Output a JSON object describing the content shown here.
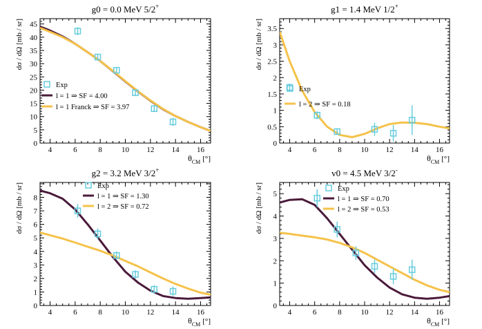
{
  "chart_data": [
    {
      "type": "scatter",
      "title": "g0 = 0.0 MeV 5/2",
      "title_sup": "+",
      "xlabel": "θ",
      "xlabel_sub": "CM",
      "xlabel_unit": "[°]",
      "ylabel": "dσ / dΩ [mb / sr]",
      "xlim": [
        3.2,
        16.8
      ],
      "ylim": [
        0,
        47
      ],
      "xticks": [
        4,
        6,
        8,
        10,
        12,
        14,
        16
      ],
      "yticks": [
        0,
        5,
        10,
        15,
        20,
        25,
        30,
        35,
        40,
        45
      ],
      "grid": false,
      "legend_entries": [
        "Exp",
        "l = 1 ⇒ SF = 4.00",
        "l = 1 Franck ⇒ SF = 3.97"
      ],
      "colors": {
        "exp": "#66ccdd",
        "l1": "#4a1a3a",
        "l2": "#f5c24a"
      },
      "exp": [
        {
          "x": 6.2,
          "y": 42.3,
          "err": 1.5
        },
        {
          "x": 7.8,
          "y": 32.5,
          "err": 1.2
        },
        {
          "x": 9.3,
          "y": 27.5,
          "err": 1.2
        },
        {
          "x": 10.8,
          "y": 19.0,
          "err": 1.2
        },
        {
          "x": 12.3,
          "y": 13.0,
          "err": 1.2
        },
        {
          "x": 13.8,
          "y": 8.0,
          "err": 1.5
        }
      ],
      "series": [
        {
          "name": "l = 1 ⇒ SF = 4.00",
          "color": "#4a1a3a",
          "x": [
            3.2,
            4,
            5,
            6,
            7,
            8,
            9,
            10,
            11,
            12,
            13,
            14,
            15,
            16,
            16.8
          ],
          "y": [
            44.0,
            42.5,
            40.3,
            37.5,
            34.3,
            31.0,
            27.2,
            23.3,
            19.5,
            16.0,
            12.8,
            10.2,
            8.0,
            6.0,
            4.6
          ]
        },
        {
          "name": "l = 1 Franck ⇒ SF = 3.97",
          "color": "#f5c24a",
          "x": [
            3.2,
            4,
            5,
            6,
            7,
            8,
            9,
            10,
            11,
            12,
            13,
            14,
            15,
            16,
            16.8
          ],
          "y": [
            43.5,
            42.0,
            40.0,
            37.5,
            34.3,
            31.0,
            27.3,
            23.4,
            19.6,
            16.1,
            12.9,
            10.2,
            8.0,
            6.0,
            4.6
          ]
        }
      ]
    },
    {
      "type": "scatter",
      "title": "g1 = 1.4 MeV 1/2",
      "title_sup": "+",
      "xlabel": "θ",
      "xlabel_sub": "CM",
      "xlabel_unit": "[°]",
      "ylabel": "dσ / dΩ [mb / sr]",
      "xlim": [
        3.2,
        16.8
      ],
      "ylim": [
        0,
        3.8
      ],
      "xticks": [
        4,
        6,
        8,
        10,
        12,
        14,
        16
      ],
      "yticks": [
        0,
        0.5,
        1,
        1.5,
        2,
        2.5,
        3,
        3.5
      ],
      "grid": false,
      "legend_entries": [
        "Exp",
        "l = 2 ⇒ SF = 0.18"
      ],
      "colors": {
        "exp": "#66ccdd",
        "l2": "#f5c24a"
      },
      "exp": [
        {
          "x": 4.0,
          "y": 1.7,
          "err": 0.12
        },
        {
          "x": 6.2,
          "y": 0.85,
          "err": 0.12
        },
        {
          "x": 7.8,
          "y": 0.35,
          "err": 0.08
        },
        {
          "x": 10.8,
          "y": 0.42,
          "err": 0.2
        },
        {
          "x": 12.3,
          "y": 0.3,
          "err": 0.25
        },
        {
          "x": 13.8,
          "y": 0.7,
          "err": 0.45
        }
      ],
      "series": [
        {
          "name": "l = 2 ⇒ SF = 0.18",
          "color": "#f5c24a",
          "x": [
            3.2,
            4,
            5,
            6,
            7,
            8,
            9,
            10,
            11,
            12,
            13,
            14,
            15,
            16,
            16.8
          ],
          "y": [
            3.4,
            2.5,
            1.6,
            0.95,
            0.5,
            0.25,
            0.18,
            0.28,
            0.45,
            0.58,
            0.63,
            0.62,
            0.58,
            0.5,
            0.45
          ]
        }
      ]
    },
    {
      "type": "scatter",
      "title": "g2 = 3.2 MeV 3/2",
      "title_sup": "+",
      "xlabel": "θ",
      "xlabel_sub": "CM",
      "xlabel_unit": "[°]",
      "ylabel": "dσ / dΩ [mb / sr]",
      "xlim": [
        3.2,
        16.8
      ],
      "ylim": [
        0,
        9.1
      ],
      "xticks": [
        4,
        6,
        8,
        10,
        12,
        14,
        16
      ],
      "yticks": [
        0,
        1,
        2,
        3,
        4,
        5,
        6,
        7,
        8
      ],
      "grid": false,
      "legend_entries": [
        "Exp",
        "l = 1 ⇒ SF = 1.30",
        "l = 2 ⇒ SF = 0.72"
      ],
      "colors": {
        "exp": "#66ccdd",
        "l1": "#4a1a3a",
        "l2": "#f5c24a"
      },
      "exp": [
        {
          "x": 6.2,
          "y": 7.0,
          "err": 0.5
        },
        {
          "x": 7.8,
          "y": 5.3,
          "err": 0.4
        },
        {
          "x": 9.3,
          "y": 3.7,
          "err": 0.3
        },
        {
          "x": 10.8,
          "y": 2.3,
          "err": 0.3
        },
        {
          "x": 12.3,
          "y": 1.2,
          "err": 0.3
        },
        {
          "x": 13.8,
          "y": 1.05,
          "err": 0.35
        }
      ],
      "series": [
        {
          "name": "l = 1 ⇒ SF = 1.30",
          "color": "#4a1a3a",
          "x": [
            3.2,
            4,
            5,
            6,
            7,
            8,
            9,
            10,
            11,
            12,
            13,
            14,
            15,
            16,
            16.8
          ],
          "y": [
            8.5,
            8.3,
            7.9,
            7.1,
            6.0,
            4.8,
            3.6,
            2.5,
            1.7,
            1.1,
            0.7,
            0.55,
            0.5,
            0.55,
            0.6
          ]
        },
        {
          "name": "l = 2 ⇒ SF = 0.72",
          "color": "#f5c24a",
          "x": [
            3.2,
            4,
            5,
            6,
            7,
            8,
            9,
            10,
            11,
            12,
            13,
            14,
            15,
            16,
            16.8
          ],
          "y": [
            5.4,
            5.2,
            4.95,
            4.65,
            4.35,
            4.05,
            3.7,
            3.3,
            2.9,
            2.45,
            2.0,
            1.6,
            1.25,
            0.95,
            0.8
          ]
        }
      ]
    },
    {
      "type": "scatter",
      "title": "v0 = 4.5 MeV 3/2",
      "title_sup": "-",
      "xlabel": "θ",
      "xlabel_sub": "CM",
      "xlabel_unit": "[°]",
      "ylabel": "dσ / dΩ [mb / sr]",
      "xlim": [
        3.2,
        16.8
      ],
      "ylim": [
        0,
        5.5
      ],
      "xticks": [
        4,
        6,
        8,
        10,
        12,
        14,
        16
      ],
      "yticks": [
        0,
        1,
        2,
        3,
        4,
        5
      ],
      "grid": false,
      "legend_entries": [
        "Exp",
        "l = 1 ⇒ SF = 0.70",
        "l = 2 ⇒ SF = 0.53"
      ],
      "colors": {
        "exp": "#66ccdd",
        "l1": "#4a1a3a",
        "l2": "#f5c24a"
      },
      "exp": [
        {
          "x": 6.2,
          "y": 4.8,
          "err": 0.4
        },
        {
          "x": 7.8,
          "y": 3.4,
          "err": 0.35
        },
        {
          "x": 9.3,
          "y": 2.35,
          "err": 0.3
        },
        {
          "x": 10.8,
          "y": 1.75,
          "err": 0.3
        },
        {
          "x": 12.3,
          "y": 1.3,
          "err": 0.35
        },
        {
          "x": 13.8,
          "y": 1.6,
          "err": 0.45
        }
      ],
      "series": [
        {
          "name": "l = 1 ⇒ SF = 0.70",
          "color": "#4a1a3a",
          "x": [
            3.2,
            4,
            5,
            6,
            7,
            8,
            9,
            10,
            11,
            12,
            13,
            14,
            15,
            16,
            16.8
          ],
          "y": [
            4.6,
            4.72,
            4.75,
            4.5,
            3.9,
            3.2,
            2.5,
            1.8,
            1.25,
            0.8,
            0.5,
            0.35,
            0.3,
            0.35,
            0.42
          ]
        },
        {
          "name": "l = 2 ⇒ SF = 0.53",
          "color": "#f5c24a",
          "x": [
            3.2,
            4,
            5,
            6,
            7,
            8,
            9,
            10,
            11,
            12,
            13,
            14,
            15,
            16,
            16.8
          ],
          "y": [
            3.25,
            3.2,
            3.12,
            3.05,
            2.95,
            2.8,
            2.6,
            2.35,
            2.05,
            1.75,
            1.45,
            1.15,
            0.9,
            0.7,
            0.6
          ]
        }
      ]
    }
  ]
}
